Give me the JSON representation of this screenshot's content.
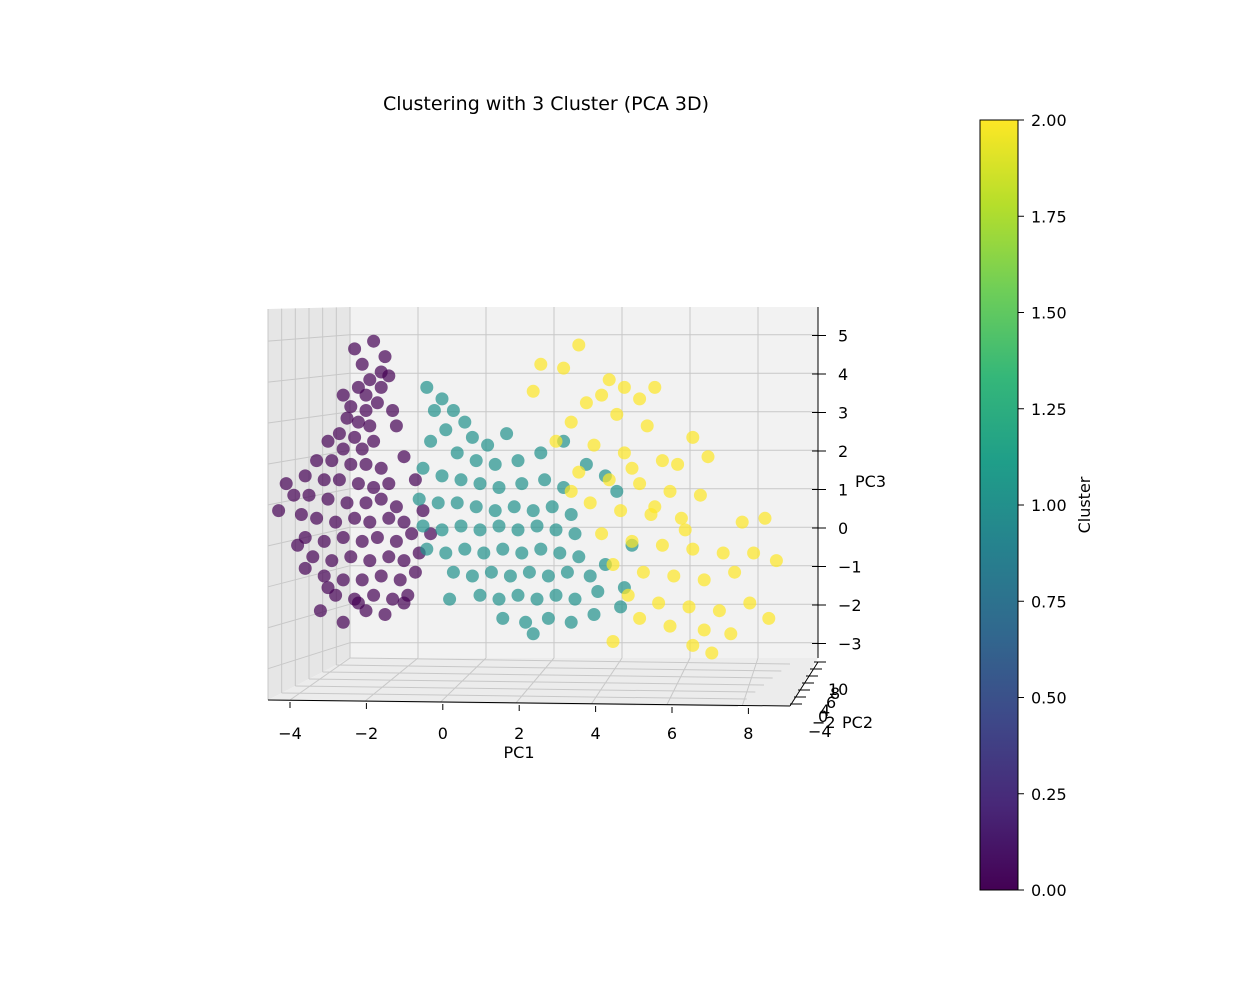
{
  "chart_data": {
    "type": "scatter",
    "projection": "3d",
    "title": "Clustering with 3 Cluster (PCA 3D)",
    "xlabel": "PC1",
    "ylabel": "PC2",
    "zlabel": "PC3",
    "xlim": [
      -5,
      9
    ],
    "ylim": [
      -4,
      11
    ],
    "zlim": [
      -3.5,
      5.5
    ],
    "x_ticks": [
      "−4",
      "−2",
      "0",
      "2",
      "4",
      "6",
      "8"
    ],
    "y_ticks": [
      "−4",
      "−2",
      "0",
      "4",
      "6",
      "8",
      "10"
    ],
    "z_ticks": [
      "−3",
      "−2",
      "−1",
      "0",
      "1",
      "2",
      "3",
      "4",
      "5"
    ],
    "grid": true,
    "colormap": "viridis",
    "marker_alpha": 0.7,
    "colorbar": {
      "label": "Cluster",
      "min": 0.0,
      "max": 2.0,
      "ticks": [
        "0.00",
        "0.25",
        "0.50",
        "0.75",
        "1.00",
        "1.25",
        "1.50",
        "1.75",
        "2.00"
      ],
      "colors": [
        "#440154",
        "#482878",
        "#3e4989",
        "#31688e",
        "#26828e",
        "#1f9e89",
        "#35b779",
        "#6ece58",
        "#b5de2b",
        "#fde725"
      ]
    },
    "series": [
      {
        "cluster": 0,
        "color": "#440154",
        "points": [
          [
            -1.8,
            0,
            4.8
          ],
          [
            -1.5,
            0,
            4.4
          ],
          [
            -1.6,
            0,
            4.0
          ],
          [
            -2.1,
            0,
            4.2
          ],
          [
            -1.9,
            0,
            3.8
          ],
          [
            -2.2,
            0,
            3.6
          ],
          [
            -2.0,
            0,
            3.4
          ],
          [
            -2.6,
            0,
            3.4
          ],
          [
            -1.4,
            0,
            3.9
          ],
          [
            -1.6,
            0,
            3.6
          ],
          [
            -2.4,
            0,
            3.1
          ],
          [
            -2.0,
            0,
            3.0
          ],
          [
            -1.7,
            0,
            3.2
          ],
          [
            -2.5,
            0,
            2.8
          ],
          [
            -2.2,
            0,
            2.7
          ],
          [
            -1.9,
            0,
            2.6
          ],
          [
            -2.7,
            0,
            2.4
          ],
          [
            -2.3,
            0,
            2.3
          ],
          [
            -3.0,
            0,
            2.2
          ],
          [
            -2.6,
            0,
            2.0
          ],
          [
            -2.1,
            0,
            2.0
          ],
          [
            -1.8,
            0,
            2.2
          ],
          [
            -3.3,
            0,
            1.7
          ],
          [
            -2.9,
            0,
            1.7
          ],
          [
            -2.4,
            0,
            1.6
          ],
          [
            -2.0,
            0,
            1.6
          ],
          [
            -1.6,
            0,
            1.5
          ],
          [
            -3.6,
            0,
            1.3
          ],
          [
            -3.1,
            0,
            1.2
          ],
          [
            -2.7,
            0,
            1.2
          ],
          [
            -2.2,
            0,
            1.1
          ],
          [
            -1.8,
            0,
            1.0
          ],
          [
            -1.4,
            0,
            1.1
          ],
          [
            -3.9,
            0,
            0.8
          ],
          [
            -3.5,
            0,
            0.8
          ],
          [
            -3.0,
            0,
            0.7
          ],
          [
            -2.5,
            0,
            0.6
          ],
          [
            -2.0,
            0,
            0.6
          ],
          [
            -1.6,
            0,
            0.7
          ],
          [
            -1.2,
            0,
            0.5
          ],
          [
            -3.7,
            0,
            0.3
          ],
          [
            -3.3,
            0,
            0.2
          ],
          [
            -2.8,
            0,
            0.1
          ],
          [
            -2.3,
            0,
            0.2
          ],
          [
            -1.9,
            0,
            0.1
          ],
          [
            -1.4,
            0,
            0.2
          ],
          [
            -1.0,
            0,
            0.1
          ],
          [
            -3.6,
            0,
            -0.3
          ],
          [
            -3.1,
            0,
            -0.4
          ],
          [
            -2.6,
            0,
            -0.3
          ],
          [
            -2.1,
            0,
            -0.4
          ],
          [
            -1.7,
            0,
            -0.3
          ],
          [
            -1.2,
            0,
            -0.4
          ],
          [
            -0.8,
            0,
            -0.2
          ],
          [
            -3.4,
            0,
            -0.8
          ],
          [
            -2.9,
            0,
            -0.9
          ],
          [
            -2.4,
            0,
            -0.8
          ],
          [
            -1.9,
            0,
            -0.9
          ],
          [
            -1.4,
            0,
            -0.8
          ],
          [
            -1.0,
            0,
            -0.9
          ],
          [
            -0.6,
            0,
            -0.7
          ],
          [
            -3.1,
            0,
            -1.3
          ],
          [
            -2.6,
            0,
            -1.4
          ],
          [
            -2.1,
            0,
            -1.4
          ],
          [
            -1.6,
            0,
            -1.3
          ],
          [
            -1.1,
            0,
            -1.4
          ],
          [
            -0.7,
            0,
            -1.2
          ],
          [
            -2.8,
            0,
            -1.8
          ],
          [
            -2.3,
            0,
            -1.9
          ],
          [
            -1.8,
            0,
            -1.8
          ],
          [
            -1.3,
            0,
            -1.9
          ],
          [
            -0.9,
            0,
            -1.8
          ],
          [
            -2.0,
            0,
            -2.2
          ],
          [
            -1.5,
            0,
            -2.3
          ],
          [
            -2.6,
            0,
            -2.5
          ],
          [
            -3.2,
            0,
            -2.2
          ],
          [
            -4.1,
            0,
            1.1
          ],
          [
            -4.3,
            0,
            0.4
          ],
          [
            -3.8,
            0,
            -0.5
          ],
          [
            -3.6,
            0,
            -1.1
          ],
          [
            -0.5,
            0,
            0.4
          ],
          [
            -0.3,
            0,
            -0.2
          ],
          [
            -1.2,
            0,
            2.6
          ],
          [
            -1.0,
            0,
            1.8
          ],
          [
            -0.7,
            0,
            1.2
          ],
          [
            -2.3,
            0,
            4.6
          ],
          [
            -1.3,
            0,
            3.0
          ],
          [
            -3.0,
            0,
            -1.6
          ],
          [
            -2.2,
            0,
            -2.0
          ],
          [
            -1.0,
            0,
            -2.0
          ]
        ]
      },
      {
        "cluster": 1,
        "color": "#21918c",
        "points": [
          [
            -0.4,
            0,
            3.6
          ],
          [
            0.0,
            0,
            3.3
          ],
          [
            -0.2,
            0,
            3.0
          ],
          [
            0.3,
            0,
            3.0
          ],
          [
            0.6,
            0,
            2.7
          ],
          [
            0.1,
            0,
            2.5
          ],
          [
            -0.3,
            0,
            2.2
          ],
          [
            0.8,
            0,
            2.3
          ],
          [
            1.2,
            0,
            2.1
          ],
          [
            1.7,
            0,
            2.4
          ],
          [
            0.4,
            0,
            1.9
          ],
          [
            0.9,
            0,
            1.7
          ],
          [
            1.4,
            0,
            1.6
          ],
          [
            2.0,
            0,
            1.7
          ],
          [
            2.6,
            0,
            1.9
          ],
          [
            -0.5,
            0,
            1.5
          ],
          [
            0.0,
            0,
            1.3
          ],
          [
            0.5,
            0,
            1.2
          ],
          [
            1.0,
            0,
            1.1
          ],
          [
            1.5,
            0,
            1.0
          ],
          [
            2.1,
            0,
            1.1
          ],
          [
            2.7,
            0,
            1.2
          ],
          [
            3.2,
            0,
            1.0
          ],
          [
            -0.6,
            0,
            0.7
          ],
          [
            -0.1,
            0,
            0.6
          ],
          [
            0.4,
            0,
            0.6
          ],
          [
            0.9,
            0,
            0.5
          ],
          [
            1.4,
            0,
            0.4
          ],
          [
            1.9,
            0,
            0.5
          ],
          [
            2.4,
            0,
            0.4
          ],
          [
            2.9,
            0,
            0.5
          ],
          [
            3.4,
            0,
            0.3
          ],
          [
            -0.5,
            0,
            0.0
          ],
          [
            0.0,
            0,
            -0.1
          ],
          [
            0.5,
            0,
            0.0
          ],
          [
            1.0,
            0,
            -0.1
          ],
          [
            1.5,
            0,
            0.0
          ],
          [
            2.0,
            0,
            -0.1
          ],
          [
            2.5,
            0,
            0.0
          ],
          [
            3.0,
            0,
            -0.1
          ],
          [
            3.5,
            0,
            -0.2
          ],
          [
            -0.4,
            0,
            -0.6
          ],
          [
            0.1,
            0,
            -0.7
          ],
          [
            0.6,
            0,
            -0.6
          ],
          [
            1.1,
            0,
            -0.7
          ],
          [
            1.6,
            0,
            -0.6
          ],
          [
            2.1,
            0,
            -0.7
          ],
          [
            2.6,
            0,
            -0.6
          ],
          [
            3.1,
            0,
            -0.7
          ],
          [
            3.6,
            0,
            -0.8
          ],
          [
            0.3,
            0,
            -1.2
          ],
          [
            0.8,
            0,
            -1.3
          ],
          [
            1.3,
            0,
            -1.2
          ],
          [
            1.8,
            0,
            -1.3
          ],
          [
            2.3,
            0,
            -1.2
          ],
          [
            2.8,
            0,
            -1.3
          ],
          [
            3.3,
            0,
            -1.2
          ],
          [
            3.9,
            0,
            -1.3
          ],
          [
            1.0,
            0,
            -1.8
          ],
          [
            1.5,
            0,
            -1.9
          ],
          [
            2.0,
            0,
            -1.8
          ],
          [
            2.5,
            0,
            -1.9
          ],
          [
            3.0,
            0,
            -1.8
          ],
          [
            3.5,
            0,
            -1.9
          ],
          [
            4.1,
            0,
            -1.7
          ],
          [
            1.6,
            0,
            -2.4
          ],
          [
            2.2,
            0,
            -2.5
          ],
          [
            2.8,
            0,
            -2.4
          ],
          [
            3.4,
            0,
            -2.5
          ],
          [
            4.0,
            0,
            -2.3
          ],
          [
            4.7,
            0,
            -2.1
          ],
          [
            5.0,
            0,
            -0.5
          ],
          [
            4.6,
            0,
            0.9
          ],
          [
            4.3,
            0,
            1.3
          ],
          [
            3.8,
            0,
            1.6
          ],
          [
            0.2,
            0,
            -1.9
          ],
          [
            2.4,
            0,
            -2.8
          ],
          [
            4.3,
            0,
            -1.0
          ],
          [
            4.8,
            0,
            -1.6
          ],
          [
            3.2,
            0,
            2.2
          ]
        ]
      },
      {
        "cluster": 2,
        "color": "#fde725",
        "points": [
          [
            3.6,
            0,
            4.7
          ],
          [
            2.6,
            0,
            4.2
          ],
          [
            3.2,
            0,
            4.1
          ],
          [
            4.4,
            0,
            3.8
          ],
          [
            4.8,
            0,
            3.6
          ],
          [
            5.6,
            0,
            3.6
          ],
          [
            4.2,
            0,
            3.4
          ],
          [
            5.2,
            0,
            3.3
          ],
          [
            3.8,
            0,
            3.2
          ],
          [
            2.4,
            0,
            3.5
          ],
          [
            3.4,
            0,
            2.7
          ],
          [
            4.6,
            0,
            2.9
          ],
          [
            5.4,
            0,
            2.6
          ],
          [
            6.6,
            0,
            2.3
          ],
          [
            3.0,
            0,
            2.2
          ],
          [
            4.0,
            0,
            2.1
          ],
          [
            4.8,
            0,
            1.9
          ],
          [
            5.8,
            0,
            1.7
          ],
          [
            6.2,
            0,
            1.6
          ],
          [
            7.0,
            0,
            1.8
          ],
          [
            3.6,
            0,
            1.4
          ],
          [
            4.4,
            0,
            1.2
          ],
          [
            5.2,
            0,
            1.1
          ],
          [
            6.0,
            0,
            0.9
          ],
          [
            6.8,
            0,
            0.8
          ],
          [
            3.9,
            0,
            0.6
          ],
          [
            4.7,
            0,
            0.4
          ],
          [
            5.5,
            0,
            0.3
          ],
          [
            6.3,
            0,
            0.2
          ],
          [
            7.9,
            0,
            0.1
          ],
          [
            8.5,
            0,
            0.2
          ],
          [
            4.2,
            0,
            -0.2
          ],
          [
            5.0,
            0,
            -0.4
          ],
          [
            5.8,
            0,
            -0.5
          ],
          [
            6.6,
            0,
            -0.6
          ],
          [
            7.4,
            0,
            -0.7
          ],
          [
            8.2,
            0,
            -0.7
          ],
          [
            8.8,
            0,
            -0.9
          ],
          [
            4.5,
            0,
            -1.0
          ],
          [
            5.3,
            0,
            -1.2
          ],
          [
            6.1,
            0,
            -1.3
          ],
          [
            6.9,
            0,
            -1.4
          ],
          [
            7.7,
            0,
            -1.2
          ],
          [
            4.9,
            0,
            -1.8
          ],
          [
            5.7,
            0,
            -2.0
          ],
          [
            6.5,
            0,
            -2.1
          ],
          [
            7.3,
            0,
            -2.2
          ],
          [
            8.1,
            0,
            -2.0
          ],
          [
            8.6,
            0,
            -2.4
          ],
          [
            5.2,
            0,
            -2.4
          ],
          [
            6.0,
            0,
            -2.6
          ],
          [
            6.9,
            0,
            -2.7
          ],
          [
            7.6,
            0,
            -2.8
          ],
          [
            4.5,
            0,
            -3.0
          ],
          [
            6.6,
            0,
            -3.1
          ],
          [
            7.1,
            0,
            -3.3
          ],
          [
            5.6,
            0,
            0.5
          ],
          [
            6.4,
            0,
            -0.1
          ],
          [
            5.0,
            0,
            1.5
          ],
          [
            3.4,
            0,
            0.9
          ]
        ]
      }
    ]
  }
}
